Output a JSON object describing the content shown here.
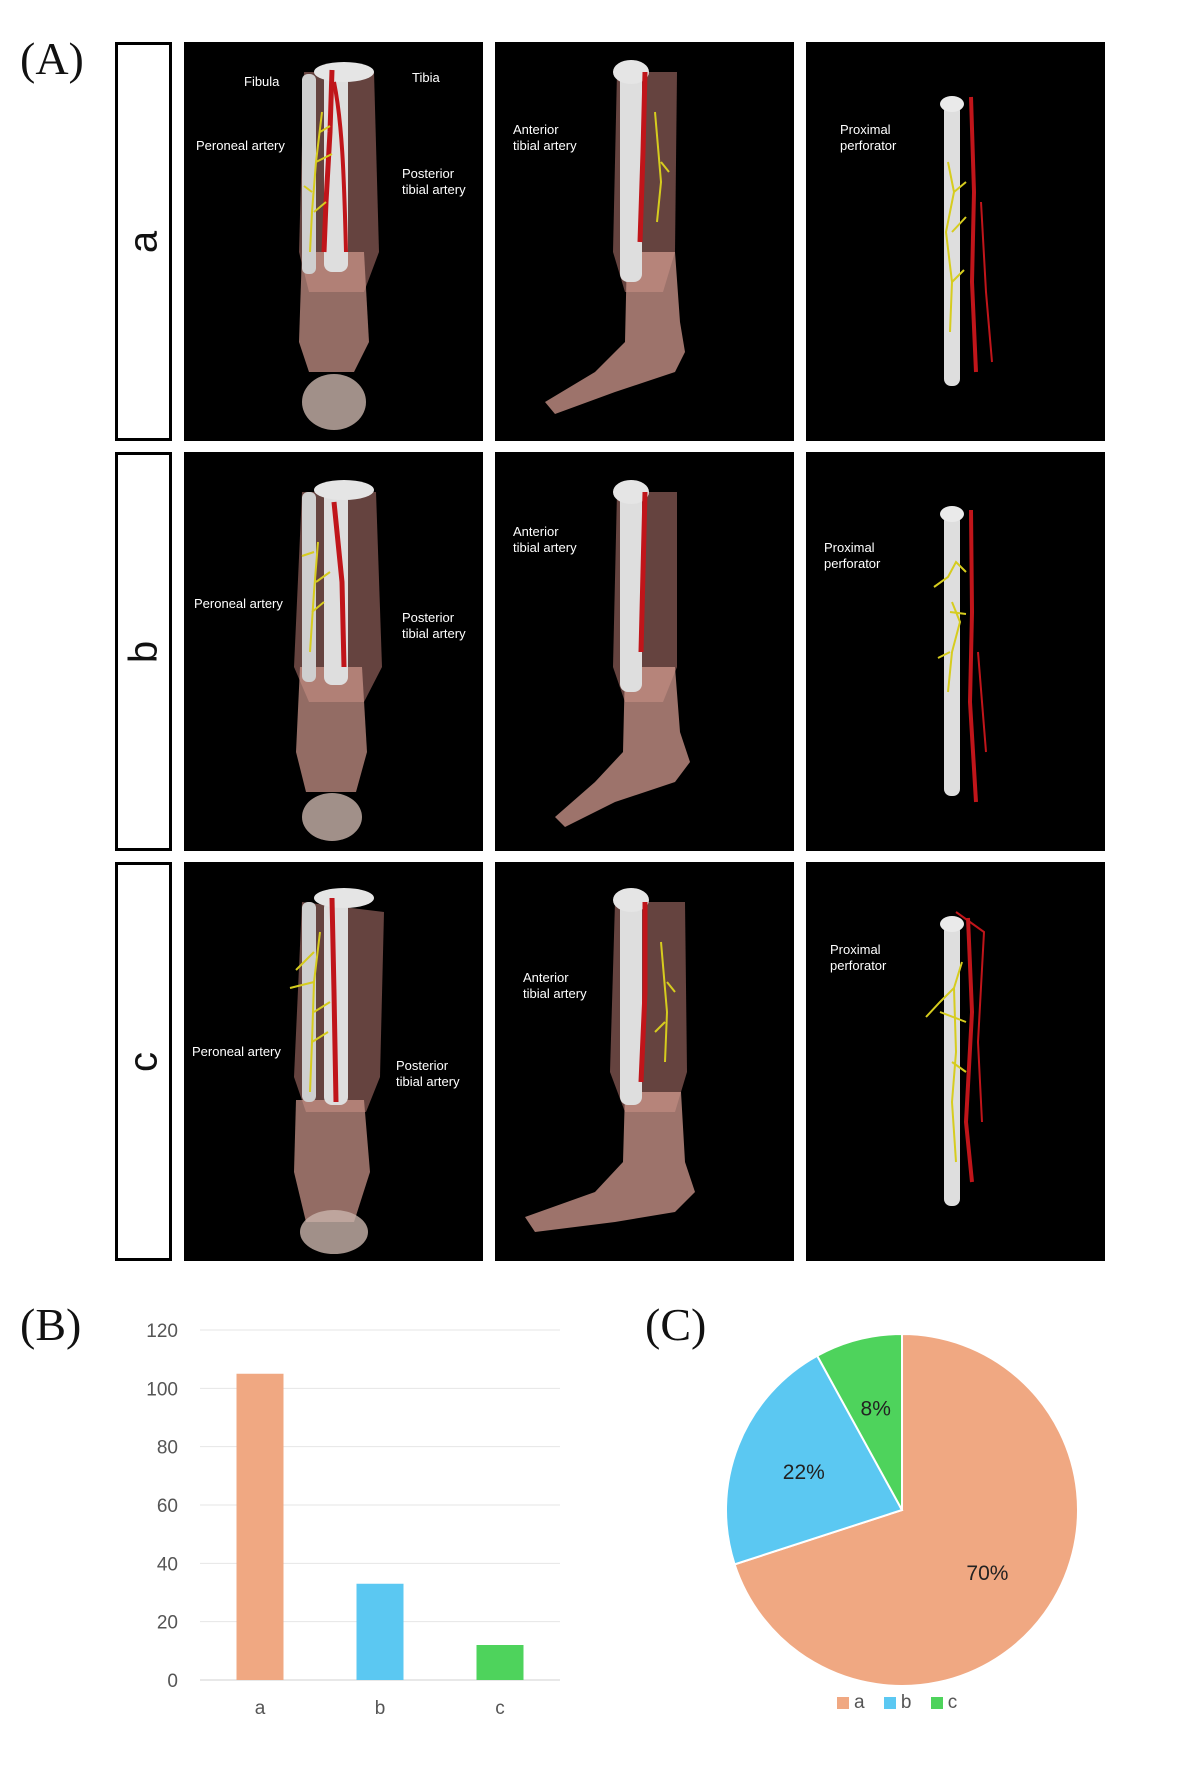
{
  "panels": {
    "A": "(A)",
    "B": "(B)",
    "C": "(C)"
  },
  "rows": [
    {
      "label": "a",
      "views": [
        {
          "labels": [
            "Fibula",
            "Tibia",
            "Peroneal artery",
            "Posterior\ntibial artery"
          ]
        },
        {
          "labels": [
            "Anterior\ntibial artery"
          ]
        },
        {
          "labels": [
            "Proximal\nperforator"
          ]
        }
      ]
    },
    {
      "label": "b",
      "views": [
        {
          "labels": [
            "Peroneal artery",
            "Posterior\ntibial artery"
          ]
        },
        {
          "labels": [
            "Anterior\ntibial artery"
          ]
        },
        {
          "labels": [
            "Proximal\nperforator"
          ]
        }
      ]
    },
    {
      "label": "c",
      "views": [
        {
          "labels": [
            "Peroneal artery",
            "Posterior\ntibial artery"
          ]
        },
        {
          "labels": [
            "Anterior\ntibial artery"
          ]
        },
        {
          "labels": [
            "Proximal\nperforator"
          ]
        }
      ]
    }
  ],
  "colors": {
    "a": "#f0a882",
    "b": "#5bc8f2",
    "c": "#4ed35c",
    "artery": "#c0151a",
    "perforator": "#d6cc1e",
    "bone": "#cfcfcf"
  },
  "chart_data": [
    {
      "type": "bar",
      "categories": [
        "a",
        "b",
        "c"
      ],
      "values": [
        105,
        33,
        12
      ],
      "ylim": [
        0,
        120
      ],
      "yticks": [
        0,
        20,
        40,
        60,
        80,
        100,
        120
      ],
      "grid": true
    },
    {
      "type": "pie",
      "categories": [
        "a",
        "b",
        "c"
      ],
      "values": [
        70,
        22,
        8
      ],
      "data_labels": [
        "70%",
        "22%",
        "8%"
      ],
      "legend": "bottom"
    }
  ]
}
